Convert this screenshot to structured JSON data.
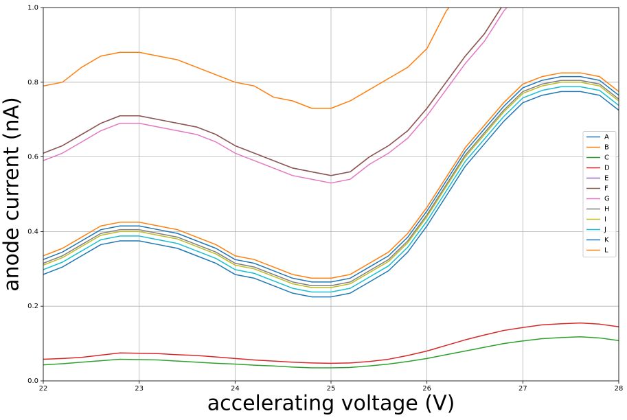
{
  "chart_data": {
    "type": "line",
    "xlabel": "accelerating voltage (V)",
    "ylabel": "anode current (nA)",
    "x": [
      22,
      22.2,
      22.4,
      22.6,
      22.8,
      23,
      23.2,
      23.4,
      23.6,
      23.8,
      24,
      24.2,
      24.4,
      24.6,
      24.8,
      25,
      25.2,
      25.4,
      25.6,
      25.8,
      26,
      26.2,
      26.4,
      26.6,
      26.8,
      27,
      27.2,
      27.4,
      27.6,
      27.8,
      28
    ],
    "xlim": [
      22,
      28
    ],
    "xticks": [
      22,
      23,
      24,
      25,
      26,
      27,
      28
    ],
    "ylim": [
      0,
      1
    ],
    "yticks": [
      {
        "value": 0,
        "label": "0.0"
      },
      0.2,
      0.4,
      0.6,
      0.8,
      {
        "value": 1,
        "label": "1.0"
      }
    ],
    "grid": true,
    "legend_position": "center right",
    "series": [
      {
        "name": "A",
        "color": "#1f77b4",
        "values": [
          0.285,
          0.305,
          0.335,
          0.365,
          0.375,
          0.375,
          0.365,
          0.355,
          0.335,
          0.315,
          0.285,
          0.275,
          0.255,
          0.235,
          0.225,
          0.225,
          0.235,
          0.265,
          0.295,
          0.345,
          0.415,
          0.495,
          0.575,
          0.635,
          0.695,
          0.745,
          0.765,
          0.775,
          0.775,
          0.765,
          0.725
        ]
      },
      {
        "name": "B",
        "color": "#ff7f0e",
        "values": [
          0.79,
          0.8,
          0.84,
          0.87,
          0.88,
          0.88,
          0.87,
          0.86,
          0.84,
          0.82,
          0.8,
          0.79,
          0.76,
          0.75,
          0.73,
          0.73,
          0.75,
          0.78,
          0.81,
          0.84,
          0.89,
          0.99,
          1.06,
          null,
          null,
          null,
          null,
          null,
          null,
          null,
          null
        ]
      },
      {
        "name": "C",
        "color": "#2ca02c",
        "values": [
          0.043,
          0.046,
          0.05,
          0.054,
          0.058,
          0.057,
          0.056,
          0.053,
          0.05,
          0.047,
          0.045,
          0.042,
          0.04,
          0.037,
          0.035,
          0.035,
          0.036,
          0.04,
          0.045,
          0.052,
          0.06,
          0.07,
          0.08,
          0.09,
          0.1,
          0.107,
          0.113,
          0.116,
          0.118,
          0.115,
          0.108
        ]
      },
      {
        "name": "D",
        "color": "#d62728",
        "values": [
          0.058,
          0.06,
          0.063,
          0.069,
          0.075,
          0.074,
          0.073,
          0.07,
          0.068,
          0.064,
          0.06,
          0.056,
          0.053,
          0.05,
          0.048,
          0.047,
          0.048,
          0.052,
          0.058,
          0.068,
          0.08,
          0.095,
          0.11,
          0.123,
          0.135,
          0.143,
          0.15,
          0.153,
          0.155,
          0.152,
          0.145
        ]
      },
      {
        "name": "E",
        "color": "#9467bd",
        "values": [
          0.61,
          0.63,
          0.66,
          0.69,
          0.71,
          0.71,
          0.7,
          0.69,
          0.68,
          0.66,
          0.63,
          0.61,
          0.59,
          0.57,
          0.56,
          0.55,
          0.56,
          0.6,
          0.63,
          0.67,
          0.73,
          0.8,
          0.87,
          0.93,
          1.01,
          1.07,
          null,
          null,
          null,
          null,
          null
        ]
      },
      {
        "name": "F",
        "color": "#8c564b",
        "values": [
          0.61,
          0.63,
          0.66,
          0.69,
          0.71,
          0.71,
          0.7,
          0.69,
          0.68,
          0.66,
          0.63,
          0.61,
          0.59,
          0.57,
          0.56,
          0.55,
          0.56,
          0.6,
          0.63,
          0.67,
          0.73,
          0.8,
          0.87,
          0.93,
          1.01,
          1.07,
          null,
          null,
          null,
          null,
          null
        ]
      },
      {
        "name": "G",
        "color": "#e377c2",
        "values": [
          0.59,
          0.61,
          0.64,
          0.67,
          0.69,
          0.69,
          0.68,
          0.67,
          0.66,
          0.64,
          0.61,
          0.59,
          0.57,
          0.55,
          0.54,
          0.53,
          0.54,
          0.58,
          0.61,
          0.65,
          0.71,
          0.78,
          0.85,
          0.91,
          0.99,
          1.05,
          null,
          null,
          null,
          null,
          null
        ]
      },
      {
        "name": "H",
        "color": "#7f7f7f",
        "values": [
          0.315,
          0.335,
          0.365,
          0.395,
          0.405,
          0.405,
          0.395,
          0.385,
          0.365,
          0.345,
          0.315,
          0.305,
          0.285,
          0.265,
          0.255,
          0.255,
          0.265,
          0.295,
          0.325,
          0.375,
          0.445,
          0.525,
          0.605,
          0.665,
          0.725,
          0.775,
          0.795,
          0.805,
          0.805,
          0.795,
          0.755
        ]
      },
      {
        "name": "I",
        "color": "#bcbd22",
        "values": [
          0.31,
          0.33,
          0.36,
          0.39,
          0.4,
          0.4,
          0.39,
          0.38,
          0.36,
          0.34,
          0.31,
          0.3,
          0.28,
          0.26,
          0.25,
          0.25,
          0.26,
          0.29,
          0.32,
          0.37,
          0.44,
          0.52,
          0.6,
          0.66,
          0.72,
          0.77,
          0.79,
          0.8,
          0.8,
          0.79,
          0.75
        ]
      },
      {
        "name": "J",
        "color": "#17becf",
        "values": [
          0.298,
          0.318,
          0.348,
          0.378,
          0.388,
          0.388,
          0.378,
          0.368,
          0.348,
          0.328,
          0.298,
          0.288,
          0.268,
          0.248,
          0.238,
          0.238,
          0.248,
          0.278,
          0.308,
          0.358,
          0.428,
          0.508,
          0.588,
          0.648,
          0.708,
          0.758,
          0.778,
          0.788,
          0.788,
          0.778,
          0.738
        ]
      },
      {
        "name": "K",
        "color": "#1f77b4",
        "values": [
          0.325,
          0.345,
          0.375,
          0.405,
          0.415,
          0.415,
          0.405,
          0.395,
          0.375,
          0.355,
          0.325,
          0.315,
          0.295,
          0.275,
          0.265,
          0.265,
          0.275,
          0.305,
          0.335,
          0.385,
          0.455,
          0.535,
          0.615,
          0.675,
          0.735,
          0.785,
          0.805,
          0.815,
          0.815,
          0.805,
          0.765
        ]
      },
      {
        "name": "L",
        "color": "#ff7f0e",
        "values": [
          0.335,
          0.355,
          0.385,
          0.415,
          0.425,
          0.425,
          0.415,
          0.405,
          0.385,
          0.365,
          0.335,
          0.325,
          0.305,
          0.285,
          0.275,
          0.275,
          0.285,
          0.315,
          0.345,
          0.395,
          0.465,
          0.545,
          0.625,
          0.685,
          0.745,
          0.795,
          0.815,
          0.825,
          0.825,
          0.815,
          0.775
        ]
      }
    ]
  }
}
